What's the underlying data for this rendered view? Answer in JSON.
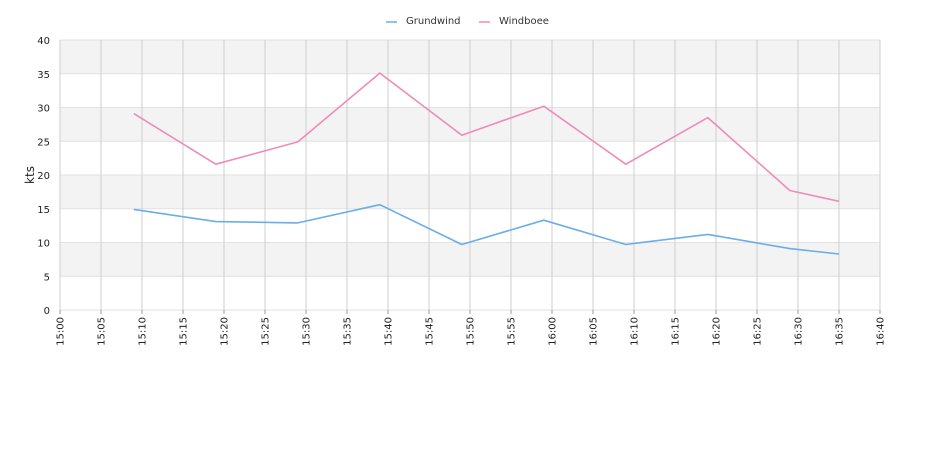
{
  "chart_data": {
    "type": "line",
    "ylabel": "kts",
    "xlabel": "",
    "ylim": [
      0,
      40
    ],
    "yticks": [
      "0",
      "5",
      "10",
      "15",
      "20",
      "25",
      "30",
      "35",
      "40"
    ],
    "xticks": [
      "15:00",
      "15:05",
      "15:10",
      "15:15",
      "15:20",
      "15:25",
      "15:30",
      "15:35",
      "15:40",
      "15:45",
      "15:50",
      "15:55",
      "16:00",
      "16:05",
      "16:10",
      "16:15",
      "16:20",
      "16:25",
      "16:30",
      "16:35",
      "16:40"
    ],
    "x_range": [
      "15:00",
      "16:40"
    ],
    "grid": true,
    "legend_position": "top-center",
    "x": [
      "15:09",
      "15:19",
      "15:29",
      "15:39",
      "15:49",
      "15:59",
      "16:09",
      "16:19",
      "16:29",
      "16:35"
    ],
    "series": [
      {
        "name": "Grundwind",
        "color": "#6aaee8",
        "values": [
          14.9,
          13.1,
          12.9,
          15.6,
          9.7,
          13.3,
          9.7,
          11.2,
          9.1,
          8.3
        ]
      },
      {
        "name": "Windboee",
        "color": "#ee8cb8",
        "values": [
          29.1,
          21.6,
          24.9,
          35.1,
          25.9,
          30.2,
          21.6,
          28.5,
          17.7,
          16.1
        ]
      }
    ]
  }
}
